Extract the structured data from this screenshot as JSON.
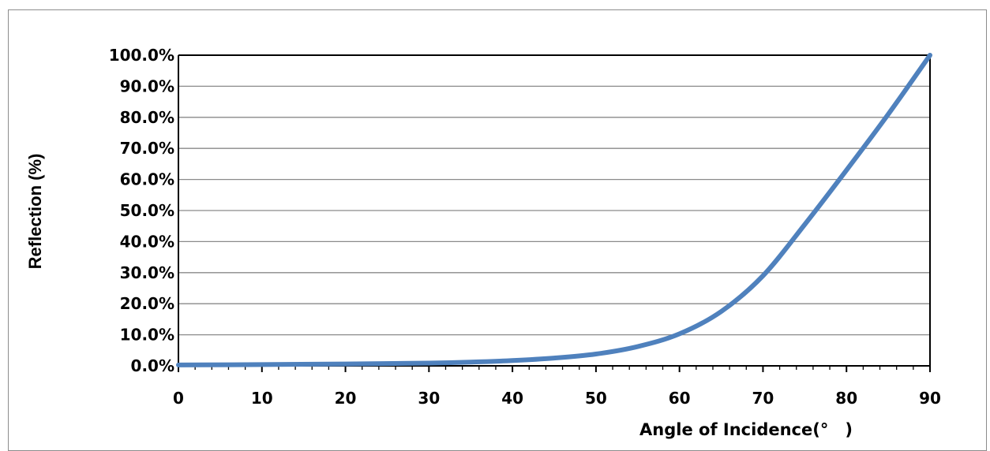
{
  "chart_data": {
    "type": "line",
    "title": "",
    "xlabel": "Angle of Incidence(° )",
    "ylabel": "Reflection (%)",
    "xlim": [
      0,
      90
    ],
    "ylim": [
      0,
      100
    ],
    "x_ticks": [
      0,
      10,
      20,
      30,
      40,
      50,
      60,
      70,
      80,
      90
    ],
    "x_tick_labels": [
      "0",
      "10",
      "20",
      "30",
      "40",
      "50",
      "60",
      "70",
      "80",
      "90"
    ],
    "y_ticks": [
      0,
      10,
      20,
      30,
      40,
      50,
      60,
      70,
      80,
      90,
      100
    ],
    "y_tick_labels": [
      "0.0%",
      "10.0%",
      "20.0%",
      "30.0%",
      "40.0%",
      "50.0%",
      "60.0%",
      "70.0%",
      "80.0%",
      "90.0%",
      "100.0%"
    ],
    "grid": "horizontal",
    "legend": "none",
    "line_color": "#4f81bd",
    "series": [
      {
        "x": [
          0,
          10,
          20,
          30,
          35,
          40,
          45,
          50,
          55,
          60,
          65,
          70,
          75,
          80,
          85,
          90
        ],
        "y": [
          0.3,
          0.4,
          0.6,
          0.9,
          1.2,
          1.7,
          2.5,
          3.8,
          6.2,
          10.3,
          17.5,
          29.0,
          45.5,
          63.0,
          81.0,
          100.0
        ]
      }
    ]
  }
}
